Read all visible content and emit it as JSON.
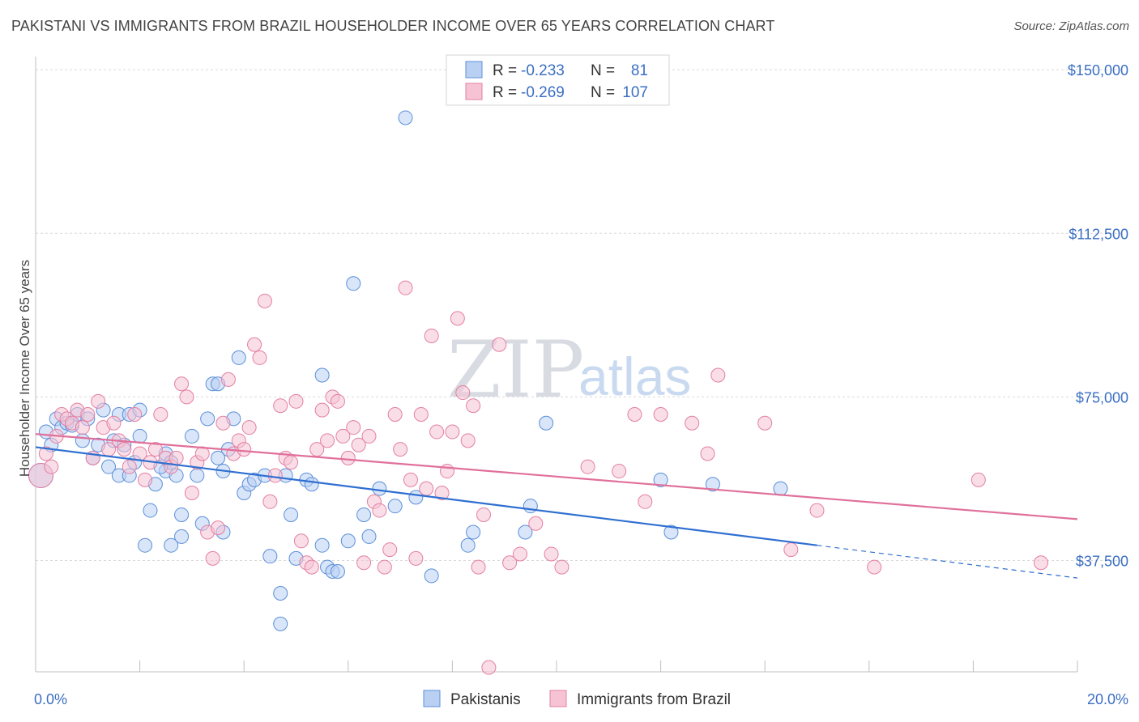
{
  "title": "PAKISTANI VS IMMIGRANTS FROM BRAZIL HOUSEHOLDER INCOME OVER 65 YEARS CORRELATION CHART",
  "source": "Source: ZipAtlas.com",
  "watermark": {
    "zip": "ZIP",
    "atlas": "atlas"
  },
  "colors": {
    "blue": "#5b8fd9",
    "blue_fill": "#b9d0f2",
    "blue_line": "#2f6fd1",
    "pink": "#e37fa3",
    "pink_fill": "#f6c3d4",
    "pink_line": "#e0709a",
    "tick_text": "#3b6fc4"
  },
  "legend_top": {
    "rows": [
      {
        "r_label": "R =",
        "r_value": "-0.233",
        "n_label": "N =",
        "n_value": "81",
        "color": "blue"
      },
      {
        "r_label": "R =",
        "r_value": "-0.269",
        "n_label": "N =",
        "n_value": "107",
        "color": "pink"
      }
    ]
  },
  "legend_bottom": [
    "Pakistanis",
    "Immigrants from Brazil"
  ],
  "chart_data": {
    "type": "scatter",
    "title": "PAKISTANI VS IMMIGRANTS FROM BRAZIL HOUSEHOLDER INCOME OVER 65 YEARS CORRELATION CHART",
    "xlabel": "",
    "ylabel": "Householder Income Over 65 years",
    "xlim": [
      0,
      20
    ],
    "ylim": [
      12000,
      153000
    ],
    "x_tick_labels": [
      {
        "value": 0,
        "label": "0.0%"
      },
      {
        "value": 20,
        "label": "20.0%"
      }
    ],
    "y_ticks": [
      {
        "value": 37500,
        "label": "$37,500"
      },
      {
        "value": 75000,
        "label": "$75,000"
      },
      {
        "value": 112500,
        "label": "$112,500"
      },
      {
        "value": 150000,
        "label": "$150,000"
      }
    ],
    "grid": true,
    "legend_position": "top-center",
    "series": [
      {
        "name": "Pakistanis",
        "R": -0.233,
        "N": 81,
        "trend": {
          "x0": 0,
          "y0": 63500,
          "x1": 15,
          "y1": 41000,
          "dashed_to_x": 20,
          "dashed_to_y": 33500
        },
        "points": [
          [
            0.1,
            57000
          ],
          [
            0.2,
            67000
          ],
          [
            0.3,
            64000
          ],
          [
            0.4,
            70000
          ],
          [
            0.5,
            68000
          ],
          [
            0.6,
            69000
          ],
          [
            0.7,
            68500
          ],
          [
            0.8,
            71000
          ],
          [
            0.9,
            65000
          ],
          [
            1.0,
            70000
          ],
          [
            1.1,
            61000
          ],
          [
            1.2,
            64000
          ],
          [
            1.3,
            72000
          ],
          [
            1.4,
            59000
          ],
          [
            1.5,
            65000
          ],
          [
            1.6,
            71000
          ],
          [
            1.6,
            57000
          ],
          [
            1.7,
            64000
          ],
          [
            1.8,
            57000
          ],
          [
            1.9,
            60000
          ],
          [
            2.0,
            66000
          ],
          [
            1.8,
            71000
          ],
          [
            2.5,
            58000
          ],
          [
            2.1,
            41000
          ],
          [
            2.0,
            72000
          ],
          [
            2.3,
            55000
          ],
          [
            2.2,
            49000
          ],
          [
            2.6,
            41000
          ],
          [
            2.5,
            62000
          ],
          [
            2.8,
            48000
          ],
          [
            2.6,
            60000
          ],
          [
            2.4,
            59000
          ],
          [
            2.7,
            57000
          ],
          [
            2.8,
            43000
          ],
          [
            3.0,
            66000
          ],
          [
            3.1,
            57000
          ],
          [
            3.2,
            46000
          ],
          [
            3.3,
            70000
          ],
          [
            3.4,
            78000
          ],
          [
            3.5,
            61000
          ],
          [
            3.5,
            78000
          ],
          [
            3.6,
            58000
          ],
          [
            3.7,
            63000
          ],
          [
            3.8,
            70000
          ],
          [
            3.9,
            84000
          ],
          [
            4.0,
            53000
          ],
          [
            4.1,
            55000
          ],
          [
            4.2,
            56000
          ],
          [
            4.4,
            57000
          ],
          [
            3.6,
            44000
          ],
          [
            4.5,
            38500
          ],
          [
            4.7,
            30000
          ],
          [
            4.8,
            57000
          ],
          [
            4.7,
            23000
          ],
          [
            4.9,
            48000
          ],
          [
            5.0,
            38000
          ],
          [
            5.2,
            56000
          ],
          [
            5.3,
            55000
          ],
          [
            5.5,
            80000
          ],
          [
            5.6,
            36000
          ],
          [
            5.7,
            35000
          ],
          [
            5.8,
            35000
          ],
          [
            6.0,
            42000
          ],
          [
            5.5,
            41000
          ],
          [
            6.3,
            48000
          ],
          [
            6.4,
            43000
          ],
          [
            6.1,
            101000
          ],
          [
            6.9,
            50000
          ],
          [
            7.3,
            52000
          ],
          [
            7.6,
            34000
          ],
          [
            7.1,
            139000
          ],
          [
            8.3,
            41000
          ],
          [
            8.4,
            44000
          ],
          [
            9.4,
            44000
          ],
          [
            9.5,
            50000
          ],
          [
            9.8,
            69000
          ],
          [
            12.0,
            56000
          ],
          [
            12.2,
            44000
          ],
          [
            13.0,
            55000
          ],
          [
            14.3,
            54000
          ],
          [
            6.6,
            54000
          ]
        ]
      },
      {
        "name": "Immigrants from Brazil",
        "R": -0.269,
        "N": 107,
        "trend": {
          "x0": 0,
          "y0": 66500,
          "x1": 20,
          "y1": 47000
        },
        "points": [
          [
            0.1,
            57000
          ],
          [
            0.2,
            62000
          ],
          [
            0.3,
            59000
          ],
          [
            0.4,
            66000
          ],
          [
            0.5,
            71000
          ],
          [
            0.6,
            70000
          ],
          [
            0.7,
            69000
          ],
          [
            0.8,
            72000
          ],
          [
            0.9,
            68000
          ],
          [
            1.0,
            71000
          ],
          [
            1.1,
            61000
          ],
          [
            1.2,
            74000
          ],
          [
            1.3,
            68000
          ],
          [
            1.4,
            63000
          ],
          [
            1.5,
            69000
          ],
          [
            1.6,
            65000
          ],
          [
            1.7,
            63000
          ],
          [
            1.8,
            59000
          ],
          [
            1.9,
            71000
          ],
          [
            2.0,
            62000
          ],
          [
            2.1,
            56000
          ],
          [
            2.2,
            60000
          ],
          [
            2.3,
            63000
          ],
          [
            2.4,
            71000
          ],
          [
            2.5,
            61000
          ],
          [
            2.6,
            59000
          ],
          [
            2.7,
            61000
          ],
          [
            2.8,
            78000
          ],
          [
            2.9,
            75000
          ],
          [
            3.0,
            53000
          ],
          [
            3.1,
            60000
          ],
          [
            3.2,
            62000
          ],
          [
            3.3,
            44000
          ],
          [
            3.4,
            38000
          ],
          [
            3.5,
            45000
          ],
          [
            3.6,
            69000
          ],
          [
            3.7,
            79000
          ],
          [
            3.8,
            62000
          ],
          [
            3.9,
            65000
          ],
          [
            4.0,
            63000
          ],
          [
            4.1,
            68000
          ],
          [
            4.2,
            87000
          ],
          [
            4.3,
            84000
          ],
          [
            4.4,
            97000
          ],
          [
            4.5,
            51000
          ],
          [
            4.6,
            57000
          ],
          [
            4.7,
            73000
          ],
          [
            4.8,
            61000
          ],
          [
            4.9,
            60000
          ],
          [
            5.0,
            74000
          ],
          [
            5.1,
            42000
          ],
          [
            5.2,
            37000
          ],
          [
            5.3,
            36000
          ],
          [
            5.4,
            63000
          ],
          [
            5.5,
            72000
          ],
          [
            5.6,
            65000
          ],
          [
            5.7,
            75000
          ],
          [
            5.8,
            74000
          ],
          [
            5.9,
            66000
          ],
          [
            6.0,
            61000
          ],
          [
            6.1,
            68000
          ],
          [
            6.2,
            64000
          ],
          [
            6.3,
            37000
          ],
          [
            6.4,
            66000
          ],
          [
            6.5,
            51000
          ],
          [
            6.6,
            49000
          ],
          [
            6.7,
            36000
          ],
          [
            6.8,
            40000
          ],
          [
            6.9,
            71000
          ],
          [
            7.0,
            63000
          ],
          [
            7.1,
            100000
          ],
          [
            7.2,
            56000
          ],
          [
            7.3,
            38000
          ],
          [
            7.4,
            71000
          ],
          [
            7.5,
            54000
          ],
          [
            7.6,
            89000
          ],
          [
            7.7,
            67000
          ],
          [
            7.8,
            53000
          ],
          [
            7.9,
            58000
          ],
          [
            8.0,
            67000
          ],
          [
            8.1,
            93000
          ],
          [
            8.2,
            76000
          ],
          [
            8.3,
            65000
          ],
          [
            8.4,
            73000
          ],
          [
            8.5,
            36000
          ],
          [
            8.6,
            48000
          ],
          [
            8.7,
            13000
          ],
          [
            8.9,
            87000
          ],
          [
            9.1,
            37000
          ],
          [
            9.3,
            39000
          ],
          [
            9.6,
            46000
          ],
          [
            9.9,
            39000
          ],
          [
            10.1,
            36000
          ],
          [
            10.6,
            59000
          ],
          [
            11.2,
            58000
          ],
          [
            11.5,
            71000
          ],
          [
            11.7,
            51000
          ],
          [
            12.0,
            71000
          ],
          [
            12.6,
            69000
          ],
          [
            12.9,
            62000
          ],
          [
            13.1,
            80000
          ],
          [
            14.0,
            69000
          ],
          [
            14.5,
            40000
          ],
          [
            15.0,
            49000
          ],
          [
            16.1,
            36000
          ],
          [
            18.1,
            56000
          ],
          [
            19.3,
            37000
          ]
        ]
      }
    ]
  }
}
